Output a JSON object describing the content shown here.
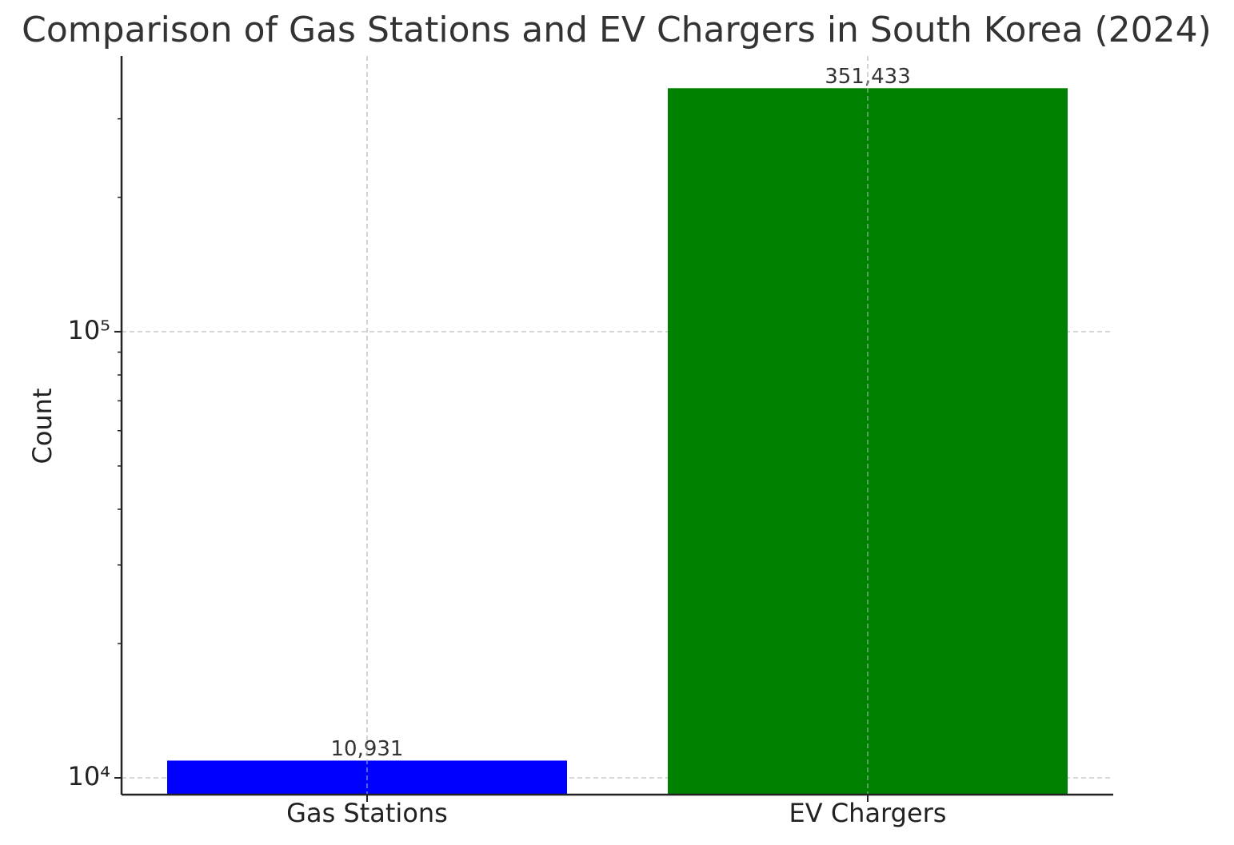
{
  "chart_data": {
    "type": "bar",
    "title": "Comparison of Gas Stations and EV Chargers in South Korea (2024)",
    "y_label": "Count",
    "categories": [
      "Gas Stations",
      "EV Chargers"
    ],
    "values": [
      10931,
      351433
    ],
    "value_labels": [
      "10,931",
      "351,433"
    ],
    "colors": [
      "#0000ff",
      "#008000"
    ],
    "log_scale": true,
    "ylim": [
      9170,
      415000
    ],
    "yticks": [
      {
        "value": 10000,
        "label": "10⁴"
      },
      {
        "value": 100000,
        "label": "10⁵"
      }
    ],
    "yminorticks": [
      20000,
      30000,
      40000,
      50000,
      60000,
      70000,
      80000,
      90000,
      200000,
      300000
    ],
    "grid": true
  }
}
